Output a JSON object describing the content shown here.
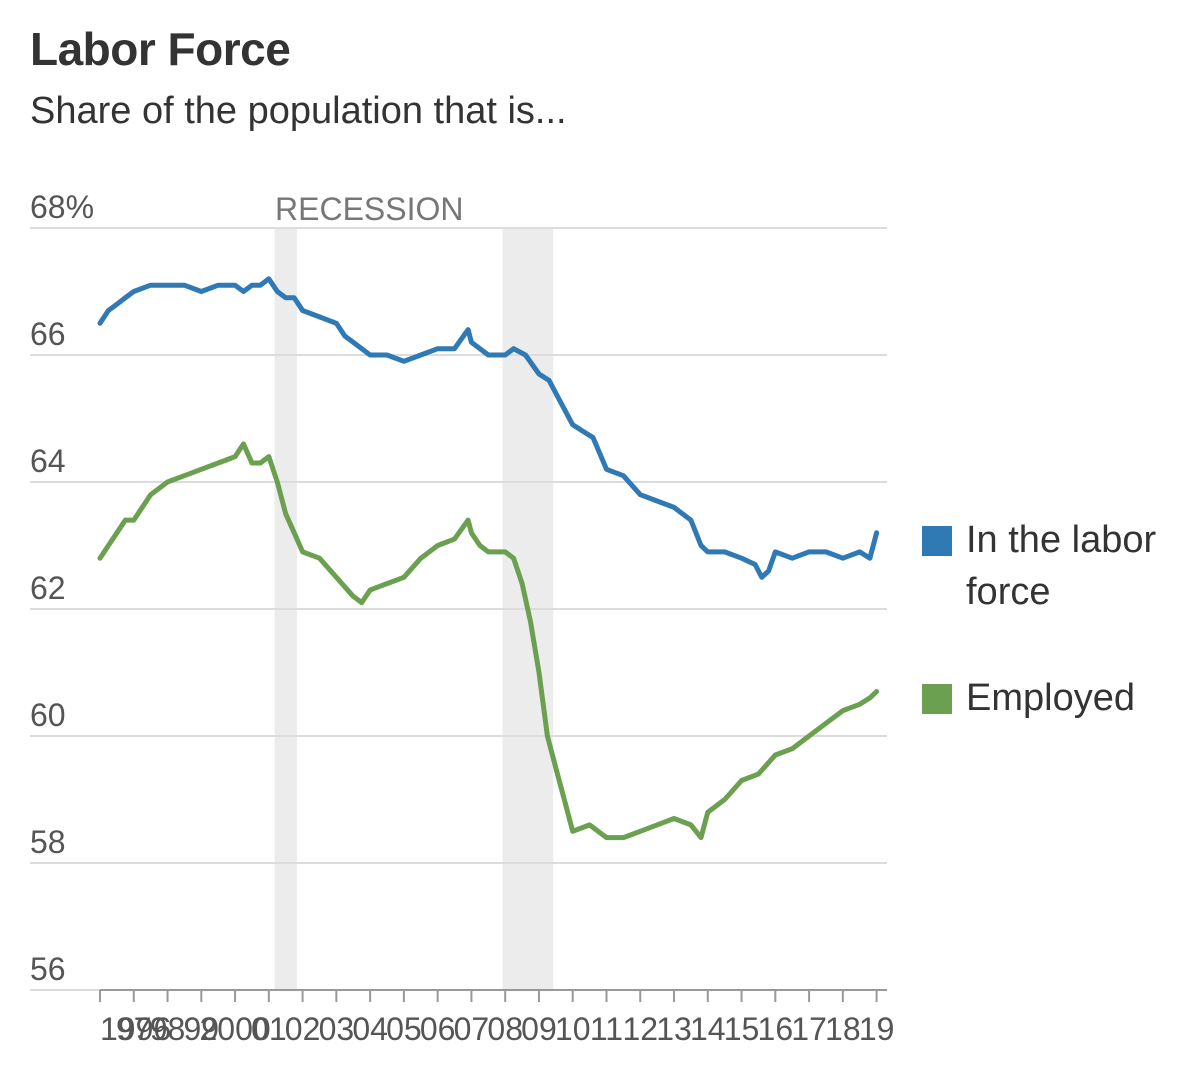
{
  "header": {
    "title": "Labor Force",
    "subtitle": "Share of the population that is..."
  },
  "colors": {
    "labor_force": "#2f79b5",
    "employed": "#6aa04f",
    "recession_shade": "#ececec",
    "gridline": "#dcdcdc",
    "axis_text": "#555555"
  },
  "chart_data": {
    "type": "line",
    "ylim": [
      56,
      68
    ],
    "y_ticks": [
      56,
      58,
      60,
      62,
      64,
      66,
      68
    ],
    "y_tick_labels": [
      "56",
      "58",
      "60",
      "62",
      "64",
      "66",
      "68%"
    ],
    "xlim": [
      1996,
      2019.1
    ],
    "x_tick_labels": [
      "1996",
      "97",
      "98",
      "99",
      "2000",
      "01",
      "02",
      "03",
      "04",
      "05",
      "06",
      "07",
      "08",
      "09",
      "10",
      "11",
      "12",
      "13",
      "14",
      "15",
      "16",
      "17",
      "18",
      "19"
    ],
    "recession_label": "RECESSION",
    "recessions": [
      [
        2001.17,
        2001.83
      ],
      [
        2007.92,
        2009.42
      ]
    ],
    "legend_position": "right",
    "series": [
      {
        "name": "In the labor force",
        "legend_label": "In the labor force",
        "points": [
          [
            1996.0,
            66.5
          ],
          [
            1996.25,
            66.7
          ],
          [
            1996.5,
            66.8
          ],
          [
            1996.75,
            66.9
          ],
          [
            1997.0,
            67.0
          ],
          [
            1997.5,
            67.1
          ],
          [
            1998.0,
            67.1
          ],
          [
            1998.5,
            67.1
          ],
          [
            1999.0,
            67.0
          ],
          [
            1999.5,
            67.1
          ],
          [
            2000.0,
            67.1
          ],
          [
            2000.25,
            67.0
          ],
          [
            2000.5,
            67.1
          ],
          [
            2000.75,
            67.1
          ],
          [
            2001.0,
            67.2
          ],
          [
            2001.25,
            67.0
          ],
          [
            2001.5,
            66.9
          ],
          [
            2001.75,
            66.9
          ],
          [
            2002.0,
            66.7
          ],
          [
            2002.5,
            66.6
          ],
          [
            2003.0,
            66.5
          ],
          [
            2003.25,
            66.3
          ],
          [
            2003.5,
            66.2
          ],
          [
            2004.0,
            66.0
          ],
          [
            2004.5,
            66.0
          ],
          [
            2005.0,
            65.9
          ],
          [
            2005.5,
            66.0
          ],
          [
            2006.0,
            66.1
          ],
          [
            2006.5,
            66.1
          ],
          [
            2006.9,
            66.4
          ],
          [
            2007.0,
            66.2
          ],
          [
            2007.5,
            66.0
          ],
          [
            2008.0,
            66.0
          ],
          [
            2008.25,
            66.1
          ],
          [
            2008.6,
            66.0
          ],
          [
            2009.0,
            65.7
          ],
          [
            2009.3,
            65.6
          ],
          [
            2009.6,
            65.3
          ],
          [
            2010.0,
            64.9
          ],
          [
            2010.3,
            64.8
          ],
          [
            2010.6,
            64.7
          ],
          [
            2011.0,
            64.2
          ],
          [
            2011.5,
            64.1
          ],
          [
            2012.0,
            63.8
          ],
          [
            2012.5,
            63.7
          ],
          [
            2013.0,
            63.6
          ],
          [
            2013.5,
            63.4
          ],
          [
            2013.8,
            63.0
          ],
          [
            2014.0,
            62.9
          ],
          [
            2014.5,
            62.9
          ],
          [
            2015.0,
            62.8
          ],
          [
            2015.4,
            62.7
          ],
          [
            2015.6,
            62.5
          ],
          [
            2015.8,
            62.6
          ],
          [
            2016.0,
            62.9
          ],
          [
            2016.5,
            62.8
          ],
          [
            2017.0,
            62.9
          ],
          [
            2017.5,
            62.9
          ],
          [
            2018.0,
            62.8
          ],
          [
            2018.5,
            62.9
          ],
          [
            2018.8,
            62.8
          ],
          [
            2019.0,
            63.2
          ]
        ]
      },
      {
        "name": "Employed",
        "legend_label": "Employed",
        "points": [
          [
            1996.0,
            62.8
          ],
          [
            1996.25,
            63.0
          ],
          [
            1996.5,
            63.2
          ],
          [
            1996.75,
            63.4
          ],
          [
            1997.0,
            63.4
          ],
          [
            1997.5,
            63.8
          ],
          [
            1998.0,
            64.0
          ],
          [
            1998.5,
            64.1
          ],
          [
            1999.0,
            64.2
          ],
          [
            1999.5,
            64.3
          ],
          [
            2000.0,
            64.4
          ],
          [
            2000.25,
            64.6
          ],
          [
            2000.5,
            64.3
          ],
          [
            2000.75,
            64.3
          ],
          [
            2001.0,
            64.4
          ],
          [
            2001.25,
            64.0
          ],
          [
            2001.5,
            63.5
          ],
          [
            2001.75,
            63.2
          ],
          [
            2002.0,
            62.9
          ],
          [
            2002.5,
            62.8
          ],
          [
            2003.0,
            62.5
          ],
          [
            2003.5,
            62.2
          ],
          [
            2003.75,
            62.1
          ],
          [
            2004.0,
            62.3
          ],
          [
            2004.5,
            62.4
          ],
          [
            2005.0,
            62.5
          ],
          [
            2005.5,
            62.8
          ],
          [
            2006.0,
            63.0
          ],
          [
            2006.5,
            63.1
          ],
          [
            2006.9,
            63.4
          ],
          [
            2007.0,
            63.2
          ],
          [
            2007.25,
            63.0
          ],
          [
            2007.5,
            62.9
          ],
          [
            2008.0,
            62.9
          ],
          [
            2008.25,
            62.8
          ],
          [
            2008.5,
            62.4
          ],
          [
            2008.75,
            61.8
          ],
          [
            2009.0,
            61.0
          ],
          [
            2009.25,
            60.0
          ],
          [
            2009.5,
            59.5
          ],
          [
            2009.75,
            59.0
          ],
          [
            2010.0,
            58.5
          ],
          [
            2010.5,
            58.6
          ],
          [
            2011.0,
            58.4
          ],
          [
            2011.5,
            58.4
          ],
          [
            2012.0,
            58.5
          ],
          [
            2012.5,
            58.6
          ],
          [
            2013.0,
            58.7
          ],
          [
            2013.5,
            58.6
          ],
          [
            2013.8,
            58.4
          ],
          [
            2014.0,
            58.8
          ],
          [
            2014.5,
            59.0
          ],
          [
            2015.0,
            59.3
          ],
          [
            2015.5,
            59.4
          ],
          [
            2016.0,
            59.7
          ],
          [
            2016.5,
            59.8
          ],
          [
            2017.0,
            60.0
          ],
          [
            2017.5,
            60.2
          ],
          [
            2018.0,
            60.4
          ],
          [
            2018.5,
            60.5
          ],
          [
            2018.8,
            60.6
          ],
          [
            2019.0,
            60.7
          ]
        ]
      }
    ]
  }
}
